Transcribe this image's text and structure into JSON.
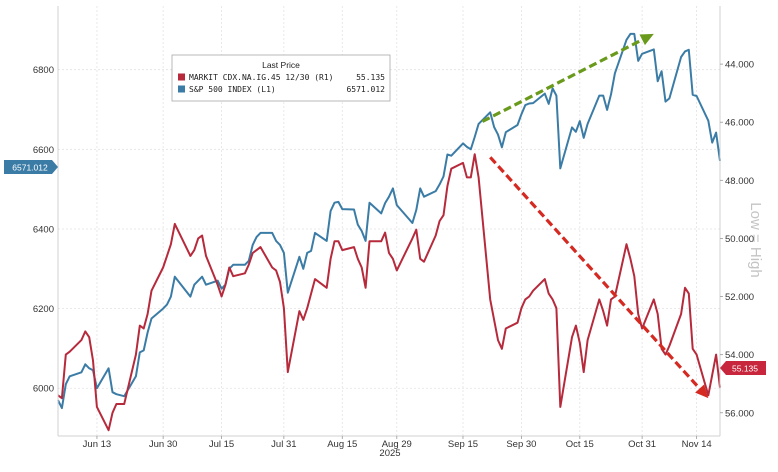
{
  "chart_data": {
    "type": "line",
    "x_axis": {
      "ticks": [
        "Jun 13",
        "Jun 30",
        "Jul 15",
        "Jul 31",
        "Aug 15",
        "Aug 29",
        "Sep 15",
        "Sep 30",
        "Oct 15",
        "Oct 31",
        "Nov 14"
      ],
      "year_label": "2025",
      "range": [
        "2025-06-03",
        "2025-11-20"
      ]
    },
    "left_axis": {
      "ticks": [
        6000,
        6200,
        6400,
        6600,
        6800
      ],
      "range": [
        5880,
        6960
      ]
    },
    "right_axis": {
      "ticks": [
        "44.000",
        "46.000",
        "48.000",
        "50.000",
        "52.000",
        "54.000",
        "56.000"
      ],
      "range": [
        56.8,
        42.0
      ],
      "inverted": true,
      "label": "Low = High"
    },
    "legend": {
      "title": "Last Price",
      "placement": "top-center",
      "entries": [
        {
          "name": "MARKIT CDX.NA.IG.45 12/30  (R1)",
          "value": "55.135",
          "color": "#b62a3c"
        },
        {
          "name": "S&P 500 INDEX  (L1)",
          "value": "6571.012",
          "color": "#3b7ca6"
        }
      ]
    },
    "last_value_tags": {
      "left": "6571.012",
      "right": "55.135"
    },
    "series": [
      {
        "name": "S&P 500 INDEX",
        "axis": "left",
        "color": "#3b7ca6",
        "points": [
          [
            "2025-06-03",
            5970
          ],
          [
            "2025-06-04",
            5950
          ],
          [
            "2025-06-05",
            6010
          ],
          [
            "2025-06-06",
            6030
          ],
          [
            "2025-06-09",
            6040
          ],
          [
            "2025-06-10",
            6060
          ],
          [
            "2025-06-11",
            6050
          ],
          [
            "2025-06-12",
            6045
          ],
          [
            "2025-06-13",
            6000
          ],
          [
            "2025-06-16",
            6050
          ],
          [
            "2025-06-17",
            5990
          ],
          [
            "2025-06-18",
            5985
          ],
          [
            "2025-06-20",
            5980
          ],
          [
            "2025-06-23",
            6030
          ],
          [
            "2025-06-24",
            6090
          ],
          [
            "2025-06-25",
            6095
          ],
          [
            "2025-06-26",
            6140
          ],
          [
            "2025-06-27",
            6175
          ],
          [
            "2025-06-30",
            6200
          ],
          [
            "2025-07-01",
            6210
          ],
          [
            "2025-07-02",
            6230
          ],
          [
            "2025-07-03",
            6280
          ],
          [
            "2025-07-07",
            6230
          ],
          [
            "2025-07-08",
            6260
          ],
          [
            "2025-07-09",
            6270
          ],
          [
            "2025-07-10",
            6280
          ],
          [
            "2025-07-11",
            6260
          ],
          [
            "2025-07-14",
            6270
          ],
          [
            "2025-07-15",
            6250
          ],
          [
            "2025-07-16",
            6260
          ],
          [
            "2025-07-17",
            6300
          ],
          [
            "2025-07-18",
            6310
          ],
          [
            "2025-07-21",
            6310
          ],
          [
            "2025-07-22",
            6320
          ],
          [
            "2025-07-23",
            6360
          ],
          [
            "2025-07-24",
            6380
          ],
          [
            "2025-07-25",
            6390
          ],
          [
            "2025-07-28",
            6390
          ],
          [
            "2025-07-29",
            6370
          ],
          [
            "2025-07-30",
            6360
          ],
          [
            "2025-07-31",
            6340
          ],
          [
            "2025-08-01",
            6240
          ],
          [
            "2025-08-04",
            6330
          ],
          [
            "2025-08-05",
            6300
          ],
          [
            "2025-08-06",
            6340
          ],
          [
            "2025-08-07",
            6345
          ],
          [
            "2025-08-08",
            6390
          ],
          [
            "2025-08-11",
            6370
          ],
          [
            "2025-08-12",
            6445
          ],
          [
            "2025-08-13",
            6466
          ],
          [
            "2025-08-14",
            6468
          ],
          [
            "2025-08-15",
            6450
          ],
          [
            "2025-08-18",
            6449
          ],
          [
            "2025-08-19",
            6411
          ],
          [
            "2025-08-20",
            6395
          ],
          [
            "2025-08-21",
            6370
          ],
          [
            "2025-08-22",
            6466
          ],
          [
            "2025-08-25",
            6439
          ],
          [
            "2025-08-26",
            6465
          ],
          [
            "2025-08-27",
            6481
          ],
          [
            "2025-08-28",
            6502
          ],
          [
            "2025-08-29",
            6460
          ],
          [
            "2025-09-02",
            6415
          ],
          [
            "2025-09-03",
            6448
          ],
          [
            "2025-09-04",
            6502
          ],
          [
            "2025-09-05",
            6481
          ],
          [
            "2025-09-08",
            6495
          ],
          [
            "2025-09-09",
            6512
          ],
          [
            "2025-09-10",
            6532
          ],
          [
            "2025-09-11",
            6587
          ],
          [
            "2025-09-12",
            6584
          ],
          [
            "2025-09-15",
            6615
          ],
          [
            "2025-09-16",
            6606
          ],
          [
            "2025-09-17",
            6600
          ],
          [
            "2025-09-18",
            6631
          ],
          [
            "2025-09-19",
            6664
          ],
          [
            "2025-09-22",
            6693
          ],
          [
            "2025-09-23",
            6656
          ],
          [
            "2025-09-24",
            6637
          ],
          [
            "2025-09-25",
            6605
          ],
          [
            "2025-09-26",
            6643
          ],
          [
            "2025-09-29",
            6661
          ],
          [
            "2025-09-30",
            6688
          ],
          [
            "2025-10-01",
            6711
          ],
          [
            "2025-10-02",
            6715
          ],
          [
            "2025-10-03",
            6716
          ],
          [
            "2025-10-06",
            6740
          ],
          [
            "2025-10-07",
            6714
          ],
          [
            "2025-10-08",
            6753
          ],
          [
            "2025-10-09",
            6735
          ],
          [
            "2025-10-10",
            6552
          ],
          [
            "2025-10-13",
            6655
          ],
          [
            "2025-10-14",
            6644
          ],
          [
            "2025-10-15",
            6671
          ],
          [
            "2025-10-16",
            6629
          ],
          [
            "2025-10-17",
            6664
          ],
          [
            "2025-10-20",
            6735
          ],
          [
            "2025-10-21",
            6735
          ],
          [
            "2025-10-22",
            6699
          ],
          [
            "2025-10-23",
            6738
          ],
          [
            "2025-10-24",
            6791
          ],
          [
            "2025-10-27",
            6875
          ],
          [
            "2025-10-28",
            6890
          ],
          [
            "2025-10-29",
            6890
          ],
          [
            "2025-10-30",
            6822
          ],
          [
            "2025-10-31",
            6840
          ],
          [
            "2025-11-03",
            6851
          ],
          [
            "2025-11-04",
            6771
          ],
          [
            "2025-11-05",
            6796
          ],
          [
            "2025-11-06",
            6720
          ],
          [
            "2025-11-07",
            6728
          ],
          [
            "2025-11-10",
            6832
          ],
          [
            "2025-11-11",
            6846
          ],
          [
            "2025-11-12",
            6850
          ],
          [
            "2025-11-13",
            6737
          ],
          [
            "2025-11-14",
            6734
          ],
          [
            "2025-11-17",
            6672
          ],
          [
            "2025-11-18",
            6617
          ],
          [
            "2025-11-19",
            6642
          ],
          [
            "2025-11-20",
            6571
          ]
        ]
      },
      {
        "name": "MARKIT CDX.NA.IG.45 12/30",
        "axis": "right",
        "color": "#b62a3c",
        "points": [
          [
            "2025-06-03",
            55.4
          ],
          [
            "2025-06-04",
            55.5
          ],
          [
            "2025-06-05",
            54.0
          ],
          [
            "2025-06-06",
            53.9
          ],
          [
            "2025-06-09",
            53.5
          ],
          [
            "2025-06-10",
            53.2
          ],
          [
            "2025-06-11",
            53.4
          ],
          [
            "2025-06-12",
            54.2
          ],
          [
            "2025-06-13",
            55.8
          ],
          [
            "2025-06-16",
            56.6
          ],
          [
            "2025-06-17",
            56.0
          ],
          [
            "2025-06-18",
            55.7
          ],
          [
            "2025-06-20",
            55.7
          ],
          [
            "2025-06-23",
            54.0
          ],
          [
            "2025-06-24",
            53.0
          ],
          [
            "2025-06-25",
            53.1
          ],
          [
            "2025-06-26",
            52.6
          ],
          [
            "2025-06-27",
            51.8
          ],
          [
            "2025-06-30",
            51.0
          ],
          [
            "2025-07-01",
            50.6
          ],
          [
            "2025-07-02",
            50.2
          ],
          [
            "2025-07-03",
            49.5
          ],
          [
            "2025-07-07",
            50.6
          ],
          [
            "2025-07-08",
            50.4
          ],
          [
            "2025-07-09",
            50.0
          ],
          [
            "2025-07-10",
            49.9
          ],
          [
            "2025-07-11",
            50.6
          ],
          [
            "2025-07-14",
            51.6
          ],
          [
            "2025-07-15",
            52.0
          ],
          [
            "2025-07-16",
            51.6
          ],
          [
            "2025-07-17",
            51.0
          ],
          [
            "2025-07-18",
            51.3
          ],
          [
            "2025-07-21",
            51.2
          ],
          [
            "2025-07-22",
            50.9
          ],
          [
            "2025-07-23",
            50.5
          ],
          [
            "2025-07-24",
            50.4
          ],
          [
            "2025-07-25",
            50.3
          ],
          [
            "2025-07-28",
            51.0
          ],
          [
            "2025-07-29",
            51.1
          ],
          [
            "2025-07-30",
            51.5
          ],
          [
            "2025-07-31",
            52.4
          ],
          [
            "2025-08-01",
            54.6
          ],
          [
            "2025-08-04",
            52.5
          ],
          [
            "2025-08-05",
            52.8
          ],
          [
            "2025-08-06",
            52.4
          ],
          [
            "2025-08-07",
            51.9
          ],
          [
            "2025-08-08",
            51.4
          ],
          [
            "2025-08-11",
            51.7
          ],
          [
            "2025-08-12",
            50.7
          ],
          [
            "2025-08-13",
            50.1
          ],
          [
            "2025-08-14",
            50.1
          ],
          [
            "2025-08-15",
            50.4
          ],
          [
            "2025-08-18",
            50.3
          ],
          [
            "2025-08-19",
            50.7
          ],
          [
            "2025-08-20",
            51.0
          ],
          [
            "2025-08-21",
            51.7
          ],
          [
            "2025-08-22",
            50.1
          ],
          [
            "2025-08-25",
            50.1
          ],
          [
            "2025-08-26",
            49.8
          ],
          [
            "2025-08-27",
            50.5
          ],
          [
            "2025-08-28",
            50.7
          ],
          [
            "2025-08-29",
            51.1
          ],
          [
            "2025-09-02",
            50.0
          ],
          [
            "2025-09-03",
            49.7
          ],
          [
            "2025-09-04",
            50.7
          ],
          [
            "2025-09-05",
            50.8
          ],
          [
            "2025-09-08",
            49.9
          ],
          [
            "2025-09-09",
            49.4
          ],
          [
            "2025-09-10",
            49.2
          ],
          [
            "2025-09-11",
            48.2
          ],
          [
            "2025-09-12",
            47.6
          ],
          [
            "2025-09-15",
            47.4
          ],
          [
            "2025-09-16",
            47.9
          ],
          [
            "2025-09-17",
            47.9
          ],
          [
            "2025-09-18",
            47.1
          ],
          [
            "2025-09-19",
            47.9
          ],
          [
            "2025-09-22",
            52.1
          ],
          [
            "2025-09-23",
            52.8
          ],
          [
            "2025-09-24",
            53.5
          ],
          [
            "2025-09-25",
            53.8
          ],
          [
            "2025-09-26",
            53.1
          ],
          [
            "2025-09-29",
            52.9
          ],
          [
            "2025-09-30",
            52.4
          ],
          [
            "2025-10-01",
            52.1
          ],
          [
            "2025-10-02",
            52.0
          ],
          [
            "2025-10-03",
            51.8
          ],
          [
            "2025-10-06",
            51.4
          ],
          [
            "2025-10-07",
            51.9
          ],
          [
            "2025-10-08",
            52.1
          ],
          [
            "2025-10-09",
            52.4
          ],
          [
            "2025-10-10",
            55.8
          ],
          [
            "2025-10-13",
            53.4
          ],
          [
            "2025-10-14",
            53.0
          ],
          [
            "2025-10-15",
            53.6
          ],
          [
            "2025-10-16",
            54.6
          ],
          [
            "2025-10-17",
            53.5
          ],
          [
            "2025-10-20",
            52.1
          ],
          [
            "2025-10-21",
            52.5
          ],
          [
            "2025-10-22",
            53.0
          ],
          [
            "2025-10-23",
            52.1
          ],
          [
            "2025-10-24",
            52.0
          ],
          [
            "2025-10-27",
            50.2
          ],
          [
            "2025-10-28",
            50.7
          ],
          [
            "2025-10-29",
            51.3
          ],
          [
            "2025-10-30",
            52.6
          ],
          [
            "2025-10-31",
            53.1
          ],
          [
            "2025-11-03",
            52.1
          ],
          [
            "2025-11-04",
            52.6
          ],
          [
            "2025-11-05",
            53.8
          ],
          [
            "2025-11-06",
            54.0
          ],
          [
            "2025-11-07",
            53.7
          ],
          [
            "2025-11-10",
            52.6
          ],
          [
            "2025-11-11",
            51.7
          ],
          [
            "2025-11-12",
            51.9
          ],
          [
            "2025-11-13",
            53.8
          ],
          [
            "2025-11-14",
            54.0
          ],
          [
            "2025-11-17",
            55.4
          ],
          [
            "2025-11-18",
            54.7
          ],
          [
            "2025-11-19",
            54.0
          ],
          [
            "2025-11-20",
            55.135
          ]
        ]
      }
    ],
    "annotations": [
      {
        "type": "arrow",
        "style": "dashed",
        "color": "#6a9a1c",
        "axis": "left",
        "from": [
          "2025-09-20",
          6670
        ],
        "to": [
          "2025-11-03",
          6890
        ]
      },
      {
        "type": "arrow",
        "style": "dashed",
        "color": "#d42a22",
        "axis": "left",
        "from": [
          "2025-09-22",
          6580
        ],
        "to": [
          "2025-11-17",
          5975
        ]
      }
    ],
    "grid": true
  }
}
